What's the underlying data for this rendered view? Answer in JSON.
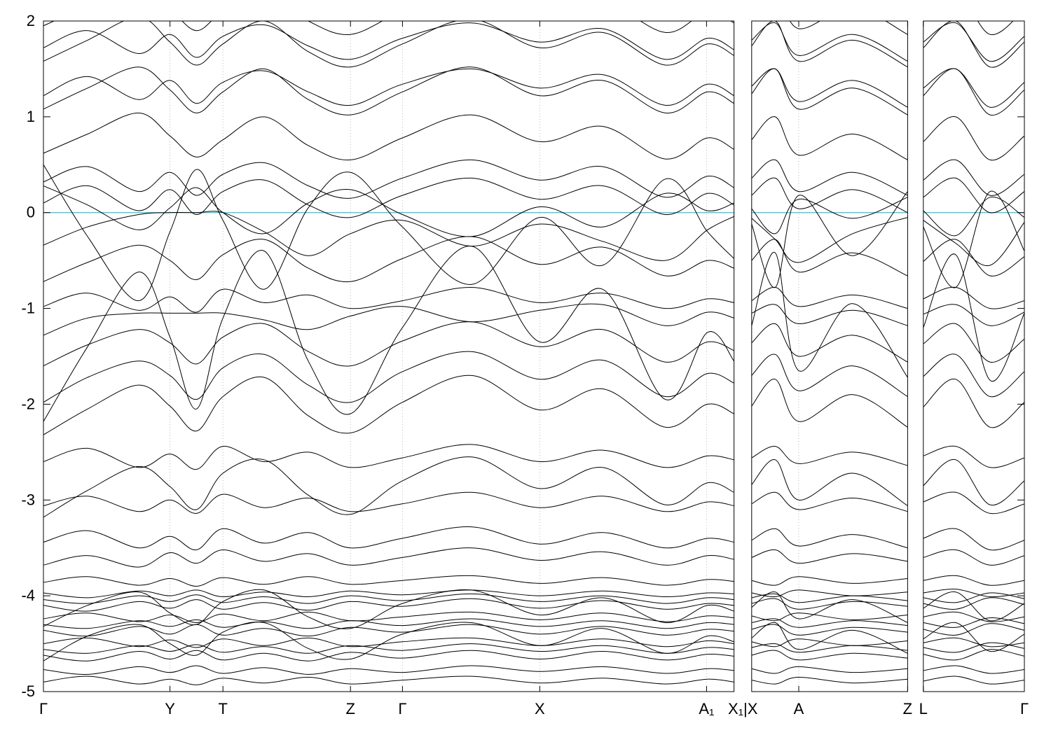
{
  "figure": {
    "background": "#ffffff"
  },
  "chart_data": {
    "type": "line",
    "title": "",
    "xlabel": "",
    "ylabel": "",
    "ylim": [
      -5,
      2
    ],
    "xlim": [
      0,
      1
    ],
    "grid": "vertical-dotted-at-high-symmetry-points",
    "legend": "none",
    "k_path": "Γ–Y–T–Z–Γ–X–A₁–X₁ | X–A–Z | L–Γ",
    "band_color": "#000000",
    "grid_color": "#bbbbbb",
    "axis_color": "#000000",
    "fermi_level": {
      "y": 0,
      "color": "#53b4c6"
    },
    "y_ticks": [
      {
        "label": "2",
        "value": 2
      },
      {
        "label": "1",
        "value": 1
      },
      {
        "label": "0",
        "value": 0
      },
      {
        "label": "-1",
        "value": -1
      },
      {
        "label": "-2",
        "value": -2
      },
      {
        "label": "-3",
        "value": -3
      },
      {
        "label": "-4",
        "value": -4
      },
      {
        "label": "-5",
        "value": -5
      }
    ],
    "x_ticks": [
      {
        "label": "Γ",
        "x": 0.0,
        "grid": false
      },
      {
        "label": "Y",
        "x": 0.129,
        "grid": true
      },
      {
        "label": "T",
        "x": 0.183,
        "grid": true
      },
      {
        "label": "Z",
        "x": 0.313,
        "grid": true
      },
      {
        "label": "Γ",
        "x": 0.366,
        "grid": true
      },
      {
        "label": "X",
        "x": 0.506,
        "grid": true
      },
      {
        "label": "A₁",
        "x": 0.676,
        "grid": true
      },
      {
        "label": "X₁|X",
        "x": 0.713,
        "grid": false,
        "tick": false
      },
      {
        "label": "A",
        "x": 0.77,
        "grid": true
      },
      {
        "label": "Z",
        "x": 0.881,
        "grid": false
      },
      {
        "label": "L",
        "x": 0.897,
        "grid": false
      },
      {
        "label": "Γ",
        "x": 1.0,
        "grid": false
      }
    ],
    "panels": [
      {
        "x0": 0.0,
        "x1": 0.704,
        "i0": 0,
        "i1": 15
      },
      {
        "x0": 0.722,
        "x1": 0.881,
        "i0": 16,
        "i1": 20
      },
      {
        "x0": 0.897,
        "x1": 1.0,
        "i0": 21,
        "i1": 24
      }
    ],
    "x": [
      0.0,
      0.045,
      0.097,
      0.129,
      0.156,
      0.183,
      0.225,
      0.27,
      0.313,
      0.366,
      0.436,
      0.506,
      0.57,
      0.634,
      0.677,
      0.704,
      0.722,
      0.746,
      0.77,
      0.825,
      0.881,
      0.897,
      0.93,
      0.965,
      1.0
    ],
    "bands": [
      [
        -4.9,
        -4.84,
        -4.92,
        -4.87,
        -4.93,
        -4.86,
        -4.91,
        -4.85,
        -4.92,
        -4.88,
        -4.84,
        -4.91,
        -4.86,
        -4.92,
        -4.87,
        -4.9,
        -4.88,
        -4.92,
        -4.85,
        -4.91,
        -4.87,
        -4.89,
        -4.84,
        -4.92,
        -4.88
      ],
      [
        -4.77,
        -4.82,
        -4.74,
        -4.8,
        -4.73,
        -4.81,
        -4.75,
        -4.82,
        -4.76,
        -4.8,
        -4.73,
        -4.79,
        -4.74,
        -4.81,
        -4.76,
        -4.78,
        -4.76,
        -4.81,
        -4.74,
        -4.8,
        -4.76,
        -4.78,
        -4.73,
        -4.81,
        -4.77
      ],
      [
        -4.62,
        -4.68,
        -4.58,
        -4.66,
        -4.57,
        -4.67,
        -4.6,
        -4.68,
        -4.59,
        -4.65,
        -4.57,
        -4.66,
        -4.58,
        -4.67,
        -4.61,
        -4.63,
        -4.62,
        -4.57,
        -4.67,
        -4.6,
        -4.65,
        -4.61,
        -4.67,
        -4.56,
        -4.63
      ],
      [
        -4.5,
        -4.44,
        -4.53,
        -4.46,
        -4.54,
        -4.45,
        -4.52,
        -4.44,
        -4.53,
        -4.48,
        -4.44,
        -4.52,
        -4.45,
        -4.53,
        -4.47,
        -4.5,
        -4.48,
        -4.53,
        -4.45,
        -4.52,
        -4.47,
        -4.49,
        -4.44,
        -4.53,
        -4.49
      ],
      [
        -4.36,
        -4.42,
        -4.32,
        -4.4,
        -4.3,
        -4.41,
        -4.34,
        -4.42,
        -4.33,
        -4.38,
        -4.3,
        -4.4,
        -4.32,
        -4.41,
        -4.35,
        -4.37,
        -4.35,
        -4.3,
        -4.41,
        -4.33,
        -4.38,
        -4.35,
        -4.41,
        -4.29,
        -4.36
      ],
      [
        -4.24,
        -4.18,
        -4.27,
        -4.2,
        -4.28,
        -4.19,
        -4.26,
        -4.17,
        -4.26,
        -4.22,
        -4.17,
        -4.25,
        -4.18,
        -4.27,
        -4.21,
        -4.23,
        -4.21,
        -4.26,
        -4.18,
        -4.25,
        -4.2,
        -4.22,
        -4.17,
        -4.27,
        -4.22
      ],
      [
        -4.1,
        -4.16,
        -4.06,
        -4.13,
        -4.04,
        -4.14,
        -4.07,
        -4.15,
        -4.06,
        -4.11,
        -4.03,
        -4.13,
        -4.05,
        -4.14,
        -4.08,
        -4.1,
        -4.08,
        -4.03,
        -4.14,
        -4.06,
        -4.11,
        -4.08,
        -4.14,
        -4.02,
        -4.09
      ],
      [
        -3.97,
        -4.02,
        -3.95,
        -4.0,
        -3.94,
        -4.01,
        -3.96,
        -4.01,
        -3.95,
        -3.99,
        -3.94,
        -4.0,
        -3.95,
        -4.01,
        -3.97,
        -3.98,
        -3.97,
        -4.01,
        -3.94,
        -4.0,
        -3.96,
        -3.97,
        -3.93,
        -4.01,
        -3.97
      ],
      [
        -3.86,
        -3.8,
        -3.89,
        -3.82,
        -3.9,
        -3.81,
        -3.88,
        -3.8,
        -3.88,
        -3.84,
        -3.79,
        -3.87,
        -3.81,
        -3.89,
        -3.83,
        -3.85,
        -3.84,
        -3.89,
        -3.8,
        -3.87,
        -3.82,
        -3.84,
        -3.79,
        -3.89,
        -3.84
      ],
      [
        -4.68,
        -4.42,
        -4.3,
        -4.5,
        -4.62,
        -4.38,
        -4.28,
        -4.55,
        -4.66,
        -4.4,
        -4.28,
        -4.52,
        -4.34,
        -4.6,
        -4.42,
        -4.48,
        -4.44,
        -4.28,
        -4.56,
        -4.36,
        -4.6,
        -4.45,
        -4.28,
        -4.58,
        -4.4
      ],
      [
        -4.32,
        -4.1,
        -3.96,
        -4.18,
        -4.3,
        -4.06,
        -3.94,
        -4.22,
        -4.34,
        -4.08,
        -3.94,
        -4.2,
        -4.02,
        -4.28,
        -4.1,
        -4.16,
        -4.12,
        -3.96,
        -4.24,
        -4.04,
        -4.28,
        -4.13,
        -3.96,
        -4.26,
        -4.08
      ],
      [
        -4.56,
        -4.6,
        -4.52,
        -4.58,
        -4.51,
        -4.59,
        -4.53,
        -4.6,
        -4.52,
        -4.57,
        -4.5,
        -4.58,
        -4.52,
        -4.6,
        -4.54,
        -4.56,
        -4.54,
        -4.5,
        -4.59,
        -4.52,
        -4.57,
        -4.54,
        -4.59,
        -4.49,
        -4.55
      ],
      [
        -4.3,
        -4.34,
        -4.26,
        -4.32,
        -4.25,
        -4.33,
        -4.27,
        -4.34,
        -4.26,
        -4.31,
        -4.24,
        -4.32,
        -4.26,
        -4.34,
        -4.28,
        -4.3,
        -4.28,
        -4.24,
        -4.33,
        -4.26,
        -4.31,
        -4.28,
        -4.33,
        -4.23,
        -4.29
      ],
      [
        -4.04,
        -4.08,
        -4.0,
        -4.06,
        -3.99,
        -4.07,
        -4.01,
        -4.08,
        -4.0,
        -4.05,
        -3.98,
        -4.06,
        -4.0,
        -4.08,
        -4.02,
        -4.04,
        -4.02,
        -3.98,
        -4.07,
        -4.0,
        -4.05,
        -4.02,
        -4.07,
        -3.97,
        -4.03
      ],
      [
        -3.68,
        -3.58,
        -3.7,
        -3.55,
        -3.66,
        -3.52,
        -3.64,
        -3.56,
        -3.68,
        -3.6,
        -3.5,
        -3.63,
        -3.54,
        -3.68,
        -3.58,
        -3.62,
        -3.6,
        -3.52,
        -3.66,
        -3.56,
        -3.64,
        -3.6,
        -3.52,
        -3.68,
        -3.58
      ],
      [
        -3.44,
        -3.32,
        -3.5,
        -3.38,
        -3.52,
        -3.3,
        -3.45,
        -3.34,
        -3.5,
        -3.4,
        -3.28,
        -3.46,
        -3.34,
        -3.5,
        -3.4,
        -3.44,
        -3.42,
        -3.3,
        -3.48,
        -3.36,
        -3.5,
        -3.4,
        -3.3,
        -3.52,
        -3.42
      ],
      [
        -3.06,
        -2.96,
        -3.12,
        -3.0,
        -3.14,
        -2.94,
        -3.08,
        -2.98,
        -3.12,
        -3.04,
        -2.92,
        -3.08,
        -2.96,
        -3.12,
        -3.02,
        -3.06,
        -3.04,
        -2.92,
        -3.1,
        -2.98,
        -3.12,
        -3.02,
        -2.92,
        -3.14,
        -3.04
      ],
      [
        -2.6,
        -2.46,
        -2.66,
        -2.52,
        -2.68,
        -2.44,
        -2.6,
        -2.5,
        -2.66,
        -2.56,
        -2.42,
        -2.6,
        -2.48,
        -2.66,
        -2.54,
        -2.58,
        -2.56,
        -2.44,
        -2.62,
        -2.5,
        -2.64,
        -2.54,
        -2.44,
        -2.66,
        -2.56
      ],
      [
        -3.18,
        -2.9,
        -2.65,
        -2.86,
        -3.1,
        -2.72,
        -2.58,
        -2.95,
        -3.15,
        -2.8,
        -2.55,
        -2.88,
        -2.66,
        -3.05,
        -2.82,
        -2.92,
        -2.84,
        -2.58,
        -3.0,
        -2.72,
        -3.06,
        -2.85,
        -2.58,
        -3.05,
        -2.8
      ],
      [
        -2.32,
        -2.05,
        -1.8,
        -2.02,
        -2.28,
        -1.92,
        -1.72,
        -2.12,
        -2.3,
        -1.98,
        -1.7,
        -2.06,
        -1.84,
        -2.24,
        -2.0,
        -2.1,
        -2.02,
        -1.74,
        -2.18,
        -1.9,
        -2.24,
        -2.03,
        -1.74,
        -2.24,
        -1.98
      ],
      [
        -1.98,
        -1.72,
        -1.55,
        -1.7,
        -1.95,
        -1.62,
        -1.48,
        -1.8,
        -1.98,
        -1.66,
        -1.45,
        -1.74,
        -1.54,
        -1.92,
        -1.68,
        -1.78,
        -1.7,
        -1.48,
        -1.86,
        -1.6,
        -1.92,
        -1.71,
        -1.48,
        -1.92,
        -1.66
      ],
      [
        -1.6,
        -1.38,
        -1.22,
        -1.36,
        -1.58,
        -1.3,
        -1.16,
        -1.45,
        -1.6,
        -1.34,
        -1.14,
        -1.4,
        -1.22,
        -1.56,
        -1.35,
        -1.44,
        -1.36,
        -1.16,
        -1.5,
        -1.28,
        -1.56,
        -1.37,
        -1.16,
        -1.56,
        -1.32
      ],
      [
        -1.28,
        -1.1,
        -1.05,
        -1.05,
        -1.05,
        -1.05,
        -1.12,
        -1.22,
        -1.08,
        -0.98,
        -1.14,
        -1.02,
        -0.96,
        -1.18,
        -1.04,
        -1.1,
        -1.05,
        -0.96,
        -1.16,
        -1.02,
        -1.18,
        -1.06,
        -0.96,
        -1.18,
        -1.04
      ],
      [
        -0.98,
        -0.84,
        -1.02,
        -0.88,
        -1.04,
        -0.8,
        -0.94,
        -0.86,
        -1.0,
        -0.92,
        -0.78,
        -0.94,
        -0.84,
        -1.0,
        -0.9,
        -0.94,
        -0.92,
        -0.78,
        -0.98,
        -0.86,
        -1.0,
        -0.9,
        -0.78,
        -1.0,
        -0.92
      ],
      [
        -0.72,
        -0.52,
        -0.34,
        -0.5,
        -0.7,
        -0.44,
        -0.28,
        -0.58,
        -0.72,
        -0.48,
        -0.25,
        -0.54,
        -0.36,
        -0.66,
        -0.5,
        -0.58,
        -0.5,
        -0.28,
        -0.62,
        -0.42,
        -0.66,
        -0.51,
        -0.28,
        -0.66,
        -0.46
      ],
      [
        -0.34,
        -0.15,
        -0.02,
        0.0,
        0.0,
        0.0,
        -0.2,
        -0.45,
        -0.22,
        -0.08,
        -0.35,
        -0.12,
        -0.3,
        -0.5,
        -0.18,
        -0.04,
        -0.06,
        -0.28,
        -0.52,
        -0.22,
        -0.05,
        -0.08,
        -0.32,
        -0.55,
        -0.1
      ],
      [
        0.28,
        0.08,
        -0.18,
        0.05,
        0.26,
        0.0,
        -0.22,
        0.1,
        0.24,
        -0.02,
        -0.25,
        0.06,
        -0.15,
        0.2,
        0.02,
        0.1,
        0.04,
        -0.22,
        0.14,
        -0.06,
        0.16,
        0.02,
        -0.24,
        0.16,
        -0.05
      ],
      [
        0.32,
        0.48,
        0.22,
        0.42,
        0.18,
        0.4,
        0.52,
        0.28,
        0.15,
        0.36,
        0.55,
        0.34,
        0.48,
        0.16,
        0.38,
        0.26,
        0.36,
        0.55,
        0.22,
        0.42,
        0.18,
        0.34,
        0.55,
        0.18,
        0.4
      ],
      [
        0.62,
        0.82,
        1.04,
        0.8,
        0.58,
        0.76,
        1.0,
        0.7,
        0.55,
        0.78,
        1.02,
        0.74,
        0.9,
        0.56,
        0.78,
        0.66,
        0.76,
        1.0,
        0.6,
        0.82,
        0.55,
        0.74,
        1.0,
        0.55,
        0.8
      ],
      [
        1.08,
        1.3,
        1.52,
        1.28,
        1.04,
        1.26,
        1.5,
        1.18,
        1.02,
        1.26,
        1.52,
        1.22,
        1.38,
        1.04,
        1.26,
        1.14,
        1.24,
        1.5,
        1.08,
        1.3,
        1.02,
        1.22,
        1.5,
        1.02,
        1.28
      ],
      [
        1.58,
        1.8,
        2.04,
        1.78,
        1.54,
        1.76,
        2.0,
        1.68,
        1.52,
        1.76,
        2.02,
        1.72,
        1.88,
        1.54,
        1.76,
        1.64,
        1.74,
        2.0,
        1.58,
        1.8,
        1.52,
        1.72,
        2.0,
        1.52,
        1.78
      ],
      [
        1.95,
        2.15,
        2.32,
        2.12,
        1.9,
        2.1,
        2.3,
        2.0,
        1.86,
        2.1,
        2.32,
        2.05,
        2.2,
        1.88,
        2.1,
        1.98,
        2.08,
        2.3,
        1.92,
        2.14,
        1.86,
        2.06,
        2.32,
        1.86,
        2.12
      ],
      [
        -2.18,
        -1.4,
        -0.62,
        -1.3,
        -2.05,
        -1.1,
        -0.4,
        -1.55,
        -2.1,
        -1.2,
        -0.35,
        -1.35,
        -0.8,
        -1.95,
        -1.25,
        -1.55,
        -1.18,
        -0.42,
        -1.65,
        -0.95,
        -1.72,
        -1.2,
        -0.44,
        -1.75,
        -1.05
      ],
      [
        0.5,
        -0.25,
        -0.92,
        -0.2,
        0.45,
        -0.08,
        -0.8,
        0.05,
        0.42,
        -0.15,
        -0.75,
        -0.05,
        -0.55,
        0.35,
        -0.2,
        -0.48,
        -0.12,
        -0.78,
        0.18,
        -0.45,
        0.22,
        -0.15,
        -0.78,
        0.22,
        -0.4
      ],
      [
        0.1,
        0.28,
        0.02,
        0.24,
        -0.02,
        0.22,
        0.34,
        0.08,
        -0.05,
        0.18,
        0.36,
        0.14,
        0.28,
        -0.02,
        0.2,
        0.08,
        0.18,
        0.36,
        0.04,
        0.24,
        0.0,
        0.16,
        0.36,
        0.0,
        0.22
      ],
      [
        1.22,
        1.42,
        1.18,
        1.38,
        1.14,
        1.36,
        1.48,
        1.26,
        1.12,
        1.34,
        1.5,
        1.3,
        1.44,
        1.12,
        1.34,
        1.22,
        1.32,
        1.5,
        1.16,
        1.38,
        1.1,
        1.3,
        1.5,
        1.1,
        1.36
      ],
      [
        1.72,
        1.9,
        1.66,
        1.86,
        1.62,
        1.84,
        1.96,
        1.74,
        1.6,
        1.82,
        1.98,
        1.78,
        1.92,
        1.6,
        1.82,
        1.7,
        1.8,
        1.98,
        1.64,
        1.86,
        1.58,
        1.78,
        1.98,
        1.58,
        1.84
      ]
    ]
  }
}
